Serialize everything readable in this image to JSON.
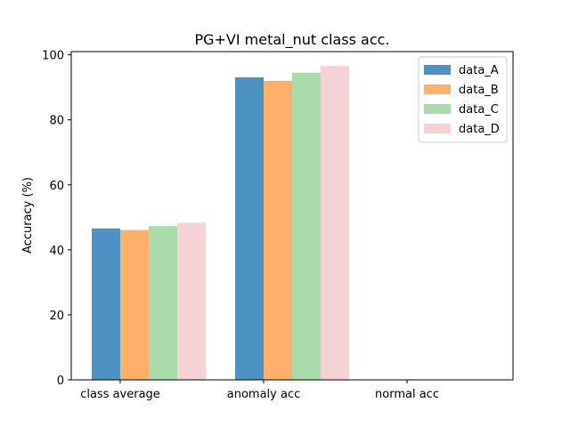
{
  "chart_data": {
    "type": "bar",
    "title": "PG+VI metal_nut class acc.",
    "xlabel": "",
    "ylabel": "Accuracy (%)",
    "categories": [
      "class average",
      "anomaly acc",
      "normal acc"
    ],
    "ylim": [
      0,
      101
    ],
    "yticks": [
      0,
      20,
      40,
      60,
      80,
      100
    ],
    "grid": false,
    "legend_position": "top-right",
    "series": [
      {
        "name": "data_A",
        "color": "#4c93c3",
        "values": [
          46.6,
          93.1,
          0
        ]
      },
      {
        "name": "data_B",
        "color": "#fdaf6b",
        "values": [
          46.1,
          92.0,
          0
        ]
      },
      {
        "name": "data_C",
        "color": "#aadbaa",
        "values": [
          47.3,
          94.5,
          0
        ]
      },
      {
        "name": "data_D",
        "color": "#f5d3d5",
        "values": [
          48.3,
          96.6,
          0
        ]
      }
    ]
  }
}
